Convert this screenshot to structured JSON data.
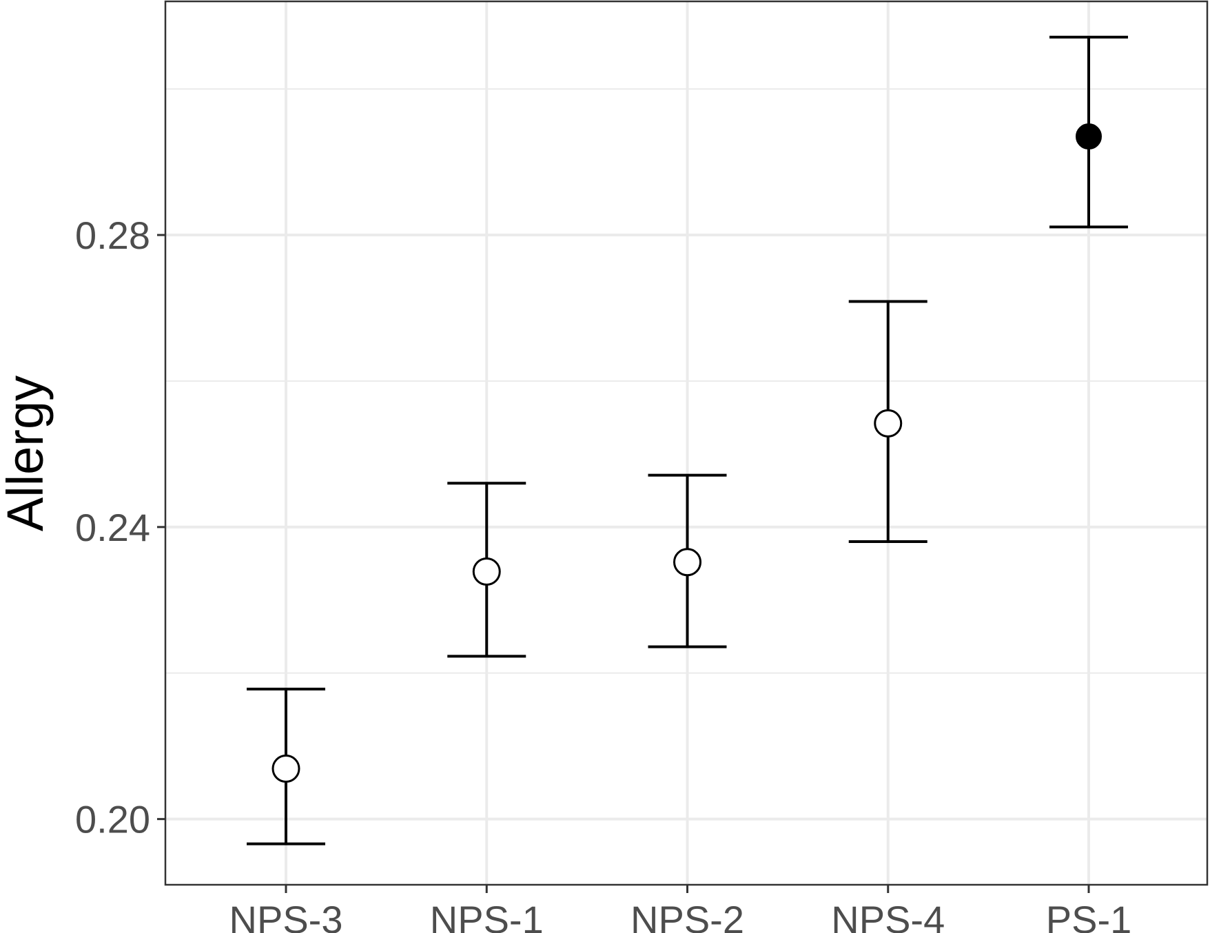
{
  "chart_data": {
    "type": "scatter",
    "ylabel": "Allergy",
    "xlabel": "",
    "categories": [
      "NPS-3",
      "NPS-1",
      "NPS-2",
      "NPS-4",
      "PS-1"
    ],
    "series": [
      {
        "points": [
          {
            "category": "NPS-3",
            "y": 0.2069,
            "lower": 0.1966,
            "upper": 0.2178,
            "filled": false
          },
          {
            "category": "NPS-1",
            "y": 0.2339,
            "lower": 0.2223,
            "upper": 0.246,
            "filled": false
          },
          {
            "category": "NPS-2",
            "y": 0.2352,
            "lower": 0.2236,
            "upper": 0.2471,
            "filled": false
          },
          {
            "category": "NPS-4",
            "y": 0.2542,
            "lower": 0.238,
            "upper": 0.2709,
            "filled": false
          },
          {
            "category": "PS-1",
            "y": 0.2935,
            "lower": 0.2811,
            "upper": 0.3071,
            "filled": true
          }
        ]
      }
    ],
    "y_ticks": [
      "0.20",
      "0.24",
      "0.28"
    ],
    "ylim": [
      0.191,
      0.312
    ],
    "grid": true,
    "legend": "none",
    "colors": {
      "grid": "#ebebeb",
      "ink": "#000000",
      "tick_text": "#4d4d4d",
      "panel_border": "#333333"
    }
  }
}
